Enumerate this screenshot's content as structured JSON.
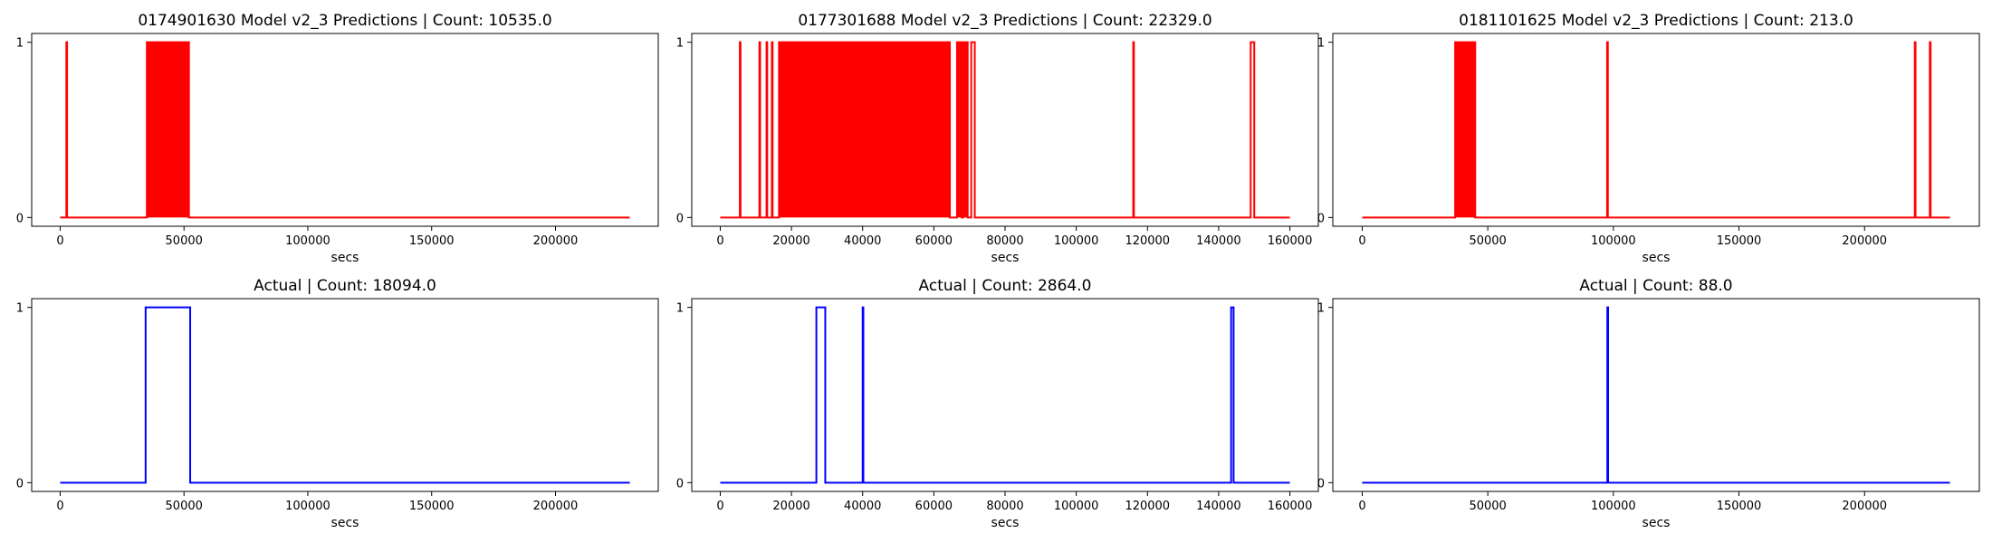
{
  "chart_data": [
    {
      "type": "line",
      "title": "0174901630 Model v2_3 Predictions | Count: 10535.0",
      "xlabel": "secs",
      "ylabel": "",
      "xlim": [
        -11500,
        241500
      ],
      "ylim": [
        -0.05,
        1.05
      ],
      "xticks": [
        0,
        50000,
        100000,
        150000,
        200000
      ],
      "yticks": [
        0,
        1
      ],
      "grid": false,
      "color": "#ff0000",
      "series": [
        {
          "x": [
            0,
            2500,
            2500,
            2800,
            2800,
            35000,
            35000,
            52000,
            52000,
            230000
          ],
          "y": [
            0,
            0,
            1,
            1,
            0,
            0,
            1,
            1,
            0,
            0
          ]
        }
      ],
      "dense_ranges": [
        [
          35000,
          52000
        ]
      ]
    },
    {
      "type": "line",
      "title": "0177301688 Model v2_3 Predictions | Count: 22329.0",
      "xlabel": "secs",
      "ylabel": "",
      "xlim": [
        -8000,
        168000
      ],
      "ylim": [
        -0.05,
        1.05
      ],
      "xticks": [
        0,
        20000,
        40000,
        60000,
        80000,
        100000,
        120000,
        140000,
        160000
      ],
      "yticks": [
        0,
        1
      ],
      "grid": false,
      "color": "#ff0000",
      "series": [
        {
          "x": [
            0,
            5500,
            5500,
            5700,
            5700,
            11000,
            11000,
            11200,
            11200,
            13000,
            13000,
            13200,
            13200,
            14500,
            14500,
            14700,
            14700,
            16500,
            16500,
            64500,
            64500,
            66500,
            66500,
            67800,
            67800,
            68200,
            68200,
            69500,
            69500,
            70500,
            70500,
            71500,
            71500,
            116000,
            116000,
            116200,
            116200,
            149000,
            149000,
            150000,
            150000,
            160000
          ],
          "y": [
            0,
            0,
            1,
            1,
            0,
            0,
            1,
            1,
            0,
            0,
            1,
            1,
            0,
            0,
            1,
            1,
            0,
            0,
            1,
            1,
            0,
            0,
            1,
            1,
            0,
            0,
            1,
            1,
            0,
            0,
            1,
            1,
            0,
            0,
            1,
            1,
            0,
            0,
            1,
            1,
            0,
            0
          ]
        }
      ],
      "dense_ranges": [
        [
          16500,
          64500
        ],
        [
          66500,
          67800
        ],
        [
          68200,
          69500
        ]
      ]
    },
    {
      "type": "line",
      "title": "0181101625 Model v2_3 Predictions | Count: 213.0",
      "xlabel": "secs",
      "ylabel": "",
      "xlim": [
        -11700,
        245700
      ],
      "ylim": [
        -0.05,
        1.05
      ],
      "xticks": [
        0,
        50000,
        100000,
        150000,
        200000
      ],
      "yticks": [
        0,
        1
      ],
      "grid": false,
      "color": "#ff0000",
      "series": [
        {
          "x": [
            0,
            37000,
            37000,
            45000,
            45000,
            97500,
            97500,
            97800,
            97800,
            220000,
            220000,
            220300,
            220300,
            226000,
            226000,
            226300,
            226300,
            234000
          ],
          "y": [
            0,
            0,
            1,
            1,
            0,
            0,
            1,
            1,
            0,
            0,
            1,
            1,
            0,
            0,
            1,
            1,
            0,
            0
          ]
        }
      ],
      "dense_ranges": [
        [
          37000,
          45000
        ]
      ]
    },
    {
      "type": "line",
      "title": "Actual | Count: 18094.0",
      "xlabel": "secs",
      "ylabel": "",
      "xlim": [
        -11500,
        241500
      ],
      "ylim": [
        -0.05,
        1.05
      ],
      "xticks": [
        0,
        50000,
        100000,
        150000,
        200000
      ],
      "yticks": [
        0,
        1
      ],
      "grid": false,
      "color": "#0000ff",
      "series": [
        {
          "x": [
            0,
            34500,
            34500,
            52500,
            52500,
            230000
          ],
          "y": [
            0,
            0,
            1,
            1,
            0,
            0
          ]
        }
      ],
      "dense_ranges": []
    },
    {
      "type": "line",
      "title": "Actual | Count: 2864.0",
      "xlabel": "secs",
      "ylabel": "",
      "xlim": [
        -8000,
        168000
      ],
      "ylim": [
        -0.05,
        1.05
      ],
      "xticks": [
        0,
        20000,
        40000,
        60000,
        80000,
        100000,
        120000,
        140000,
        160000
      ],
      "yticks": [
        0,
        1
      ],
      "grid": false,
      "color": "#0000ff",
      "series": [
        {
          "x": [
            0,
            27000,
            27000,
            29500,
            29500,
            40000,
            40000,
            40200,
            40200,
            143500,
            143500,
            144200,
            144200,
            160000
          ],
          "y": [
            0,
            0,
            1,
            1,
            0,
            0,
            1,
            1,
            0,
            0,
            1,
            1,
            0,
            0
          ]
        }
      ],
      "dense_ranges": []
    },
    {
      "type": "line",
      "title": "Actual | Count: 88.0",
      "xlabel": "secs",
      "ylabel": "",
      "xlim": [
        -11700,
        245700
      ],
      "ylim": [
        -0.05,
        1.05
      ],
      "xticks": [
        0,
        50000,
        100000,
        150000,
        200000
      ],
      "yticks": [
        0,
        1
      ],
      "grid": false,
      "color": "#0000ff",
      "series": [
        {
          "x": [
            0,
            97600,
            97600,
            97900,
            97900,
            234000
          ],
          "y": [
            0,
            0,
            1,
            1,
            0,
            0
          ]
        }
      ],
      "dense_ranges": []
    }
  ]
}
